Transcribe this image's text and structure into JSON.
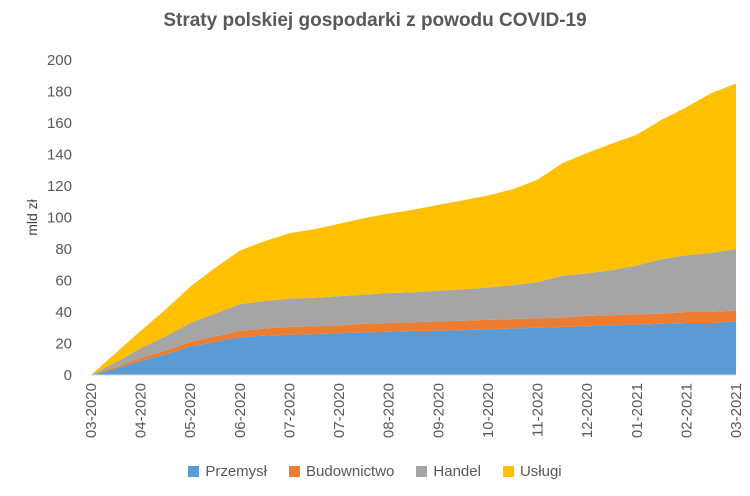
{
  "chart_data": {
    "type": "area",
    "stacked": true,
    "title": "Straty polskiej gospodarki z powodu COVID-19",
    "xlabel": "",
    "ylabel": "mld zł",
    "ylim": [
      0,
      200
    ],
    "yticks": [
      0,
      20,
      40,
      60,
      80,
      100,
      120,
      140,
      160,
      180,
      200
    ],
    "x": [
      0,
      0.5,
      1,
      1.5,
      2,
      2.5,
      3,
      3.5,
      4,
      4.5,
      5,
      5.5,
      6,
      6.5,
      7,
      7.5,
      8,
      8.5,
      9,
      9.5,
      10,
      10.5,
      11,
      11.5,
      12,
      12.5,
      13
    ],
    "xticks": [
      {
        "pos": 0,
        "label": "03-2020"
      },
      {
        "pos": 1,
        "label": "04-2020"
      },
      {
        "pos": 2,
        "label": "05-2020"
      },
      {
        "pos": 3,
        "label": "06-2020"
      },
      {
        "pos": 4,
        "label": "07-2020"
      },
      {
        "pos": 5,
        "label": "07-2020"
      },
      {
        "pos": 6,
        "label": "08-2020"
      },
      {
        "pos": 7,
        "label": "09-2020"
      },
      {
        "pos": 8,
        "label": "10-2020"
      },
      {
        "pos": 9,
        "label": "11-2020"
      },
      {
        "pos": 10,
        "label": "12-2020"
      },
      {
        "pos": 11,
        "label": "01-2021"
      },
      {
        "pos": 12,
        "label": "02-2021"
      },
      {
        "pos": 13,
        "label": "03-2021"
      }
    ],
    "series": [
      {
        "name": "Przemysł",
        "color": "#5b9bd5",
        "values": [
          0,
          4,
          9,
          13,
          18,
          21,
          24,
          25,
          25.5,
          26,
          26.5,
          27,
          27.5,
          28,
          28,
          28.5,
          29,
          29.5,
          30,
          30.5,
          31,
          31.5,
          32,
          32.5,
          33,
          33,
          34
        ]
      },
      {
        "name": "Budownictwo",
        "color": "#ed7d31",
        "values": [
          0,
          1,
          2,
          2.5,
          3,
          3.5,
          4,
          4.5,
          5,
          5,
          5,
          5.5,
          5.5,
          5.5,
          6,
          6,
          6,
          6,
          6,
          6,
          6.5,
          6.5,
          6.5,
          6.5,
          7,
          7,
          7
        ]
      },
      {
        "name": "Handel",
        "color": "#a5a5a5",
        "values": [
          0,
          3,
          6,
          9,
          12,
          14.5,
          17,
          17.5,
          18,
          18,
          18.5,
          18.5,
          19,
          19,
          19.5,
          20,
          20.5,
          21.5,
          23,
          26.5,
          27,
          28.5,
          31,
          34.5,
          36,
          37.5,
          39
        ]
      },
      {
        "name": "Usługi",
        "color": "#ffc000",
        "values": [
          0,
          6,
          11,
          17,
          23,
          29,
          34,
          38,
          41.5,
          43.5,
          46,
          48.5,
          50.5,
          52.5,
          54.5,
          56.5,
          58.5,
          61,
          65,
          71.5,
          76.5,
          80.5,
          83,
          88.5,
          94,
          101.5,
          105
        ]
      }
    ]
  }
}
